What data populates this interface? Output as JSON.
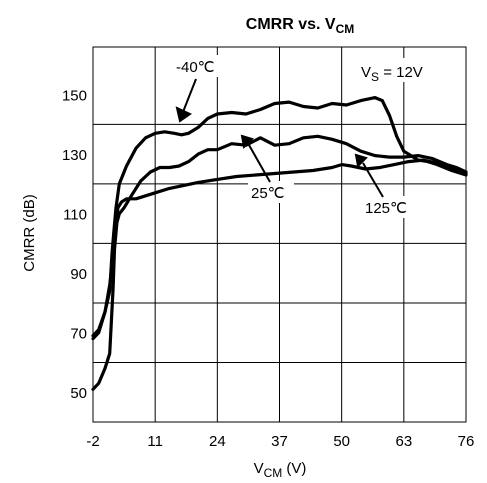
{
  "chart_data": {
    "type": "line",
    "title": "CMRR vs. V",
    "title_sub": "CM",
    "xlabel": "V",
    "xlabel_sub": "CM",
    "xlabel_unit": " (V)",
    "ylabel": "CMRR (dB)",
    "x_ticks": [
      "-2",
      "11",
      "24",
      "37",
      "50",
      "63",
      "76"
    ],
    "y_ticks": [
      "50",
      "70",
      "90",
      "110",
      "130",
      "150"
    ],
    "xlim": [
      -2,
      76
    ],
    "ylim": [
      40,
      166
    ],
    "grid": true,
    "legend": "none",
    "annotation_supply": {
      "pre": "V",
      "sub": "S",
      "post": " = 12V"
    },
    "series": [
      {
        "name": "-40℃",
        "x": [
          -2,
          -0.8,
          0.5,
          1.5,
          2.0,
          2.3,
          2.8,
          3.5,
          5.0,
          7.0,
          9.0,
          11.0,
          13.0,
          15.0,
          16.5,
          18.0,
          20.0,
          22.0,
          24.0,
          27.0,
          30.0,
          33.0,
          36.0,
          39.0,
          42.0,
          45.0,
          48.0,
          51.0,
          54.0,
          57.0,
          58.5,
          60.0,
          61.5,
          63.0,
          66.0,
          68.0,
          70.0,
          73.0,
          76.0
        ],
        "y": [
          69,
          71,
          77,
          84,
          97,
          103,
          112,
          120,
          126,
          132,
          135.5,
          137,
          137.5,
          137,
          136.5,
          137,
          139,
          142,
          143.5,
          144,
          143.5,
          145,
          147,
          147.5,
          146,
          145.5,
          147,
          146.5,
          148,
          149,
          148,
          143,
          136,
          131,
          128,
          127.5,
          126.5,
          124.5,
          123
        ]
      },
      {
        "name": "25℃",
        "x": [
          -2,
          -0.8,
          0.5,
          1.5,
          2.2,
          2.5,
          3.0,
          3.5,
          4.5,
          6.0,
          8.0,
          10.0,
          12.0,
          14.0,
          16.0,
          18.0,
          20.0,
          22.0,
          24.0,
          27.0,
          30.0,
          33.0,
          36.0,
          39.0,
          42.0,
          45.0,
          48.0,
          51.0,
          54.0,
          57.0,
          60.0,
          63.0,
          66.0,
          69.0,
          72.0,
          74.0,
          76.0
        ],
        "y": [
          51,
          53,
          58,
          63,
          85,
          98,
          107,
          110,
          112,
          116,
          121,
          124,
          125.5,
          125.5,
          126,
          127.5,
          130,
          131.5,
          131.5,
          133.5,
          133,
          135.5,
          133,
          133.5,
          135.5,
          136,
          135,
          133.5,
          131,
          129.5,
          129,
          129,
          129.5,
          128.5,
          126.5,
          125.5,
          124
        ]
      },
      {
        "name": "125℃",
        "x": [
          -2,
          -0.8,
          0.5,
          1.5,
          2.2,
          2.7,
          3.2,
          4.0,
          5.0,
          7.0,
          9.0,
          11.0,
          14.0,
          17.0,
          20.0,
          24.0,
          28.0,
          32.0,
          36.0,
          40.0,
          44.0,
          48.0,
          50.0,
          52.0,
          55.0,
          58.0,
          61.0,
          64.0,
          67.0,
          70.0,
          73.0,
          76.0
        ],
        "y": [
          68,
          70,
          77,
          86,
          95,
          104,
          112,
          114,
          115,
          115,
          116,
          117,
          118.5,
          119.5,
          120.5,
          121.5,
          122.5,
          123,
          123.5,
          124,
          124.5,
          125.5,
          126.5,
          126,
          125,
          125.5,
          126.5,
          127.5,
          128,
          127,
          125.5,
          123.5
        ]
      }
    ],
    "labels": {
      "minus40": "-40℃",
      "t25": "25℃",
      "t125": "125℃"
    }
  }
}
